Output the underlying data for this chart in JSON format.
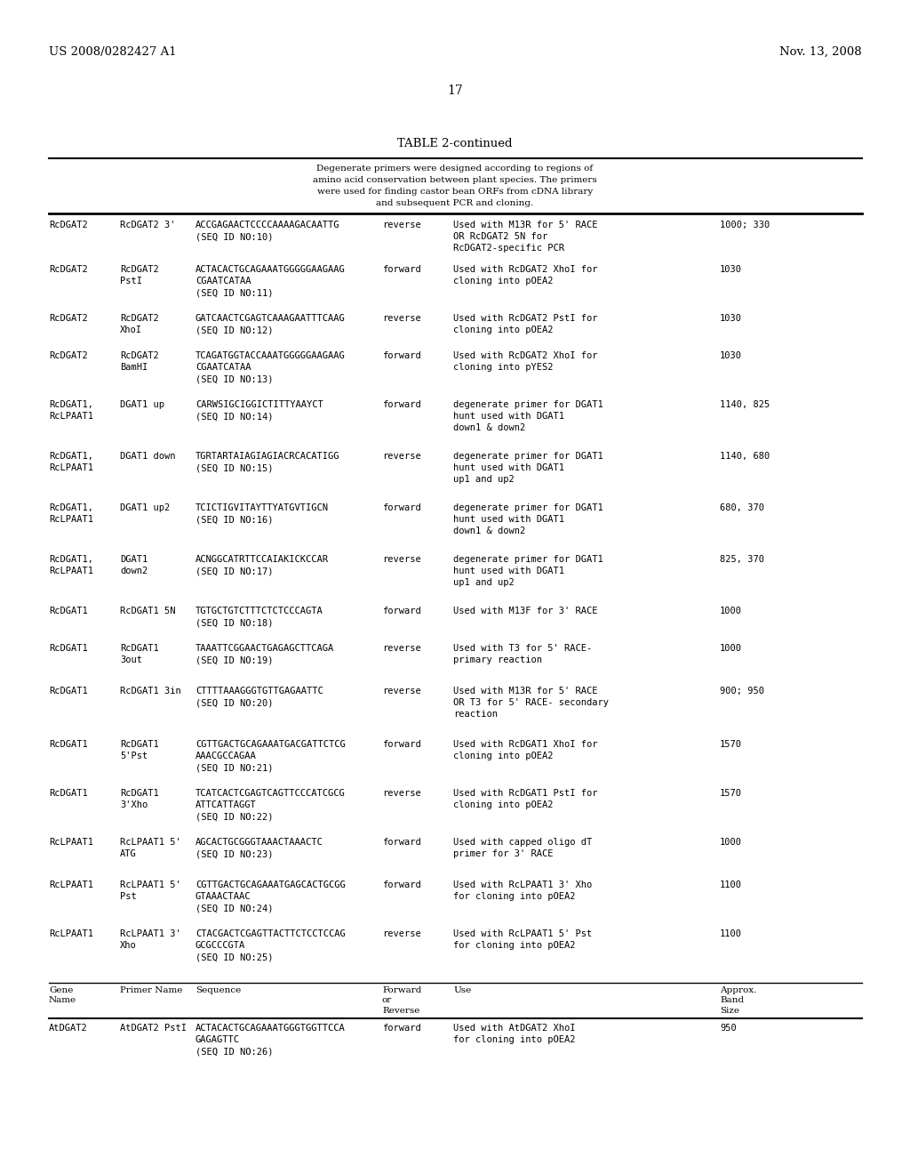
{
  "header_left": "US 2008/0282427 A1",
  "header_right": "Nov. 13, 2008",
  "page_number": "17",
  "table_title": "TABLE 2-continued",
  "note_text": "Degenerate primers were designed according to regions of\namino acid conservation between plant species. The primers\nwere used for finding castor bean ORFs from cDNA library\nand subsequent PCR and cloning.",
  "rows": [
    [
      "RcDGAT2",
      "RcDGAT2 3'",
      "ACCGAGAACTCCCCAAAAGACAATTG\n(SEQ ID NO:10)",
      "reverse",
      "Used with M13R for 5' RACE\nOR RcDGAT2 5N for\nRcDGAT2-specific PCR",
      "1000; 330"
    ],
    [
      "RcDGAT2",
      "RcDGAT2\nPstI",
      "ACTACACTGCAGAAATGGGGGAAGAAG\nCGAATCATAA\n(SEQ ID NO:11)",
      "forward",
      "Used with RcDGAT2 XhoI for\ncloning into pOEA2",
      "1030"
    ],
    [
      "RcDGAT2",
      "RcDGAT2\nXhoI",
      "GATCAACTCGAGTCAAAGAATTTCAAG\n(SEQ ID NO:12)",
      "reverse",
      "Used with RcDGAT2 PstI for\ncloning into pOEA2",
      "1030"
    ],
    [
      "RcDGAT2",
      "RcDGAT2\nBamHI",
      "TCAGATGGTACCAAATGGGGGAAGAAG\nCGAATCATAA\n(SEQ ID NO:13)",
      "forward",
      "Used with RcDGAT2 XhoI for\ncloning into pYES2",
      "1030"
    ],
    [
      "RcDGAT1,\nRcLPAAT1",
      "DGAT1 up",
      "CARWSIGCIGGICTITTYAAYCT\n(SEQ ID NO:14)",
      "forward",
      "degenerate primer for DGAT1\nhunt used with DGAT1\ndown1 & down2",
      "1140, 825"
    ],
    [
      "RcDGAT1,\nRcLPAAT1",
      "DGAT1 down",
      "TGRTARTAIAGIAGIACRCACATIGG\n(SEQ ID NO:15)",
      "reverse",
      "degenerate primer for DGAT1\nhunt used with DGAT1\nup1 and up2",
      "1140, 680"
    ],
    [
      "RcDGAT1,\nRcLPAAT1",
      "DGAT1 up2",
      "TCICTIGVITAYTTYATGVTIGCN\n(SEQ ID NO:16)",
      "forward",
      "degenerate primer for DGAT1\nhunt used with DGAT1\ndown1 & down2",
      "680, 370"
    ],
    [
      "RcDGAT1,\nRcLPAAT1",
      "DGAT1\ndown2",
      "ACNGGCATRTTCCAIAKICKCCAR\n(SEQ ID NO:17)",
      "reverse",
      "degenerate primer for DGAT1\nhunt used with DGAT1\nup1 and up2",
      "825, 370"
    ],
    [
      "RcDGAT1",
      "RcDGAT1 5N",
      "TGTGCTGTCTTTCTCTCCCAGTA\n(SEQ ID NO:18)",
      "forward",
      "Used with M13F for 3' RACE",
      "1000"
    ],
    [
      "RcDGAT1",
      "RcDGAT1\n3out",
      "TAAATTCGGAACTGAGAGCTTCAGA\n(SEQ ID NO:19)",
      "reverse",
      "Used with T3 for 5' RACE-\nprimary reaction",
      "1000"
    ],
    [
      "RcDGAT1",
      "RcDGAT1 3in",
      "CTTTTAAAGGGTGTTGAGAATTC\n(SEQ ID NO:20)",
      "reverse",
      "Used with M13R for 5' RACE\nOR T3 for 5' RACE- secondary\nreaction",
      "900; 950"
    ],
    [
      "RcDGAT1",
      "RcDGAT1\n5'Pst",
      "CGTTGACTGCAGAAATGACGATTCTCG\nAAACGCCAGAA\n(SEQ ID NO:21)",
      "forward",
      "Used with RcDGAT1 XhoI for\ncloning into pOEA2",
      "1570"
    ],
    [
      "RcDGAT1",
      "RcDGAT1\n3'Xho",
      "TCATCACTCGAGTCAGTTCCCATCGCG\nATTCATTAGGT\n(SEQ ID NO:22)",
      "reverse",
      "Used with RcDGAT1 PstI for\ncloning into pOEA2",
      "1570"
    ],
    [
      "RcLPAAT1",
      "RcLPAAT1 5'\nATG",
      "AGCACTGCGGGTAAACTAAACTC\n(SEQ ID NO:23)",
      "forward",
      "Used with capped oligo dT\nprimer for 3' RACE",
      "1000"
    ],
    [
      "RcLPAAT1",
      "RcLPAAT1 5'\nPst",
      "CGTTGACTGCAGAAATGAGCACTGCGG\nGTAAACTAAC\n(SEQ ID NO:24)",
      "forward",
      "Used with RcLPAAT1 3' Xho\nfor cloning into pOEA2",
      "1100"
    ],
    [
      "RcLPAAT1",
      "RcLPAAT1 3'\nXho",
      "CTACGACTCGAGTTACTTCTCCTCCAG\nGCGCCCGTA\n(SEQ ID NO:25)",
      "reverse",
      "Used with RcLPAAT1 5' Pst\nfor cloning into pOEA2",
      "1100"
    ],
    [
      "AtDGAT2",
      "AtDGAT2 PstI",
      "ACTACACTGCAGAAATGGGTGGTTCCA\nGAGAGTTC\n(SEQ ID NO:26)",
      "forward",
      "Used with AtDGAT2 XhoI\nfor cloning into pOEA2",
      "950"
    ]
  ],
  "col_headers": [
    "Gene\nName",
    "Primer Name",
    "Sequence",
    "Forward\nor\nReverse",
    "Use",
    "Approx.\nBand\nSize"
  ],
  "background_color": "#ffffff",
  "text_color": "#000000",
  "body_fs": 7.5,
  "mono_font": "DejaVu Sans Mono"
}
